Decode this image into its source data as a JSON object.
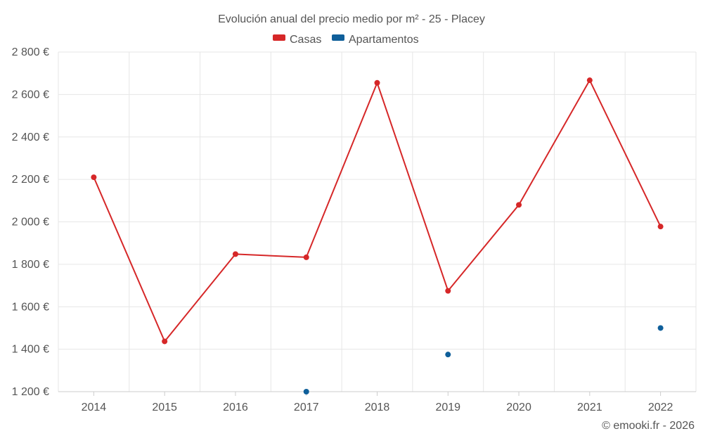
{
  "chart_data": {
    "type": "line",
    "title": "Evolución anual del precio medio por m² - 25 - Placey",
    "categories": [
      "2014",
      "2015",
      "2016",
      "2017",
      "2018",
      "2019",
      "2020",
      "2021",
      "2022"
    ],
    "y_ticks": [
      "1 200 €",
      "1 400 €",
      "1 600 €",
      "1 800 €",
      "2 000 €",
      "2 200 €",
      "2 400 €",
      "2 600 €",
      "2 800 €"
    ],
    "ylim": [
      1200,
      2800
    ],
    "grid": true,
    "legend_position": "top",
    "series": [
      {
        "name": "Casas",
        "color": "#d62728",
        "style": "line",
        "values": [
          2210,
          1437,
          1848,
          1833,
          2655,
          1675,
          2080,
          2667,
          1978
        ]
      },
      {
        "name": "Apartamentos",
        "color": "#0f5f9a",
        "style": "points",
        "values": [
          null,
          null,
          null,
          1200,
          null,
          1375,
          null,
          null,
          1500
        ]
      }
    ]
  },
  "credit": "© emooki.fr - 2026"
}
